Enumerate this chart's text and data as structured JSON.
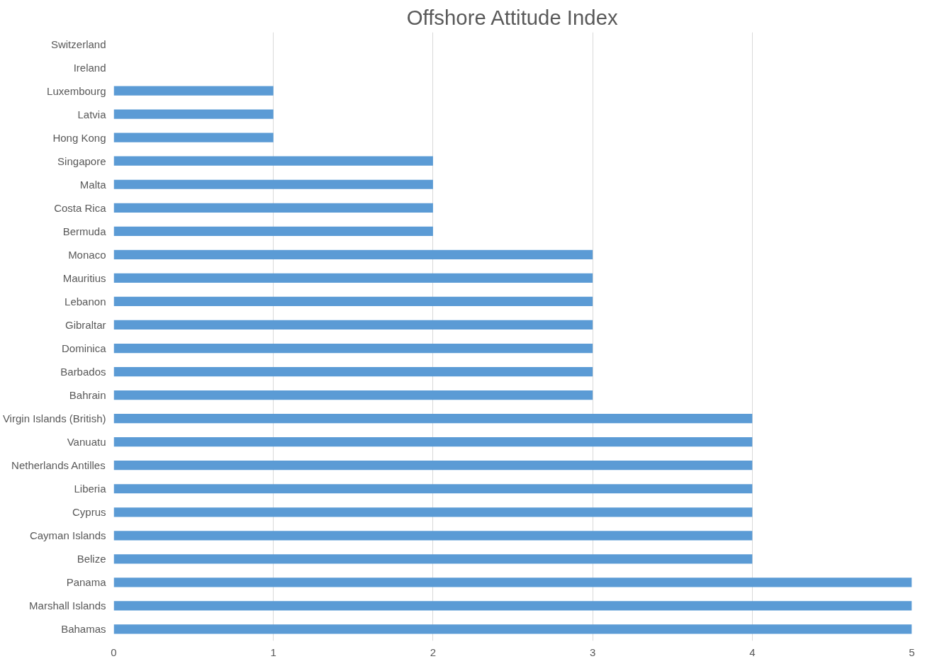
{
  "chart_data": {
    "type": "bar",
    "orientation": "horizontal",
    "title": "Offshore Attitude Index",
    "categories": [
      "Switzerland",
      "Ireland",
      "Luxembourg",
      "Latvia",
      "Hong Kong",
      "Singapore",
      "Malta",
      "Costa Rica",
      "Bermuda",
      "Monaco",
      "Mauritius",
      "Lebanon",
      "Gibraltar",
      "Dominica",
      "Barbados",
      "Bahrain",
      "Virgin Islands (British)",
      "Vanuatu",
      "Netherlands Antilles",
      "Liberia",
      "Cyprus",
      "Cayman Islands",
      "Belize",
      "Panama",
      "Marshall Islands",
      "Bahamas"
    ],
    "values": [
      0,
      0,
      1,
      1,
      1,
      2,
      2,
      2,
      2,
      3,
      3,
      3,
      3,
      3,
      3,
      3,
      4,
      4,
      4,
      4,
      4,
      4,
      4,
      5,
      5,
      5
    ],
    "color": "#5b9bd5",
    "xlim": [
      0,
      5
    ],
    "xticks": [
      0,
      1,
      2,
      3,
      4,
      5
    ],
    "grid": "x"
  }
}
